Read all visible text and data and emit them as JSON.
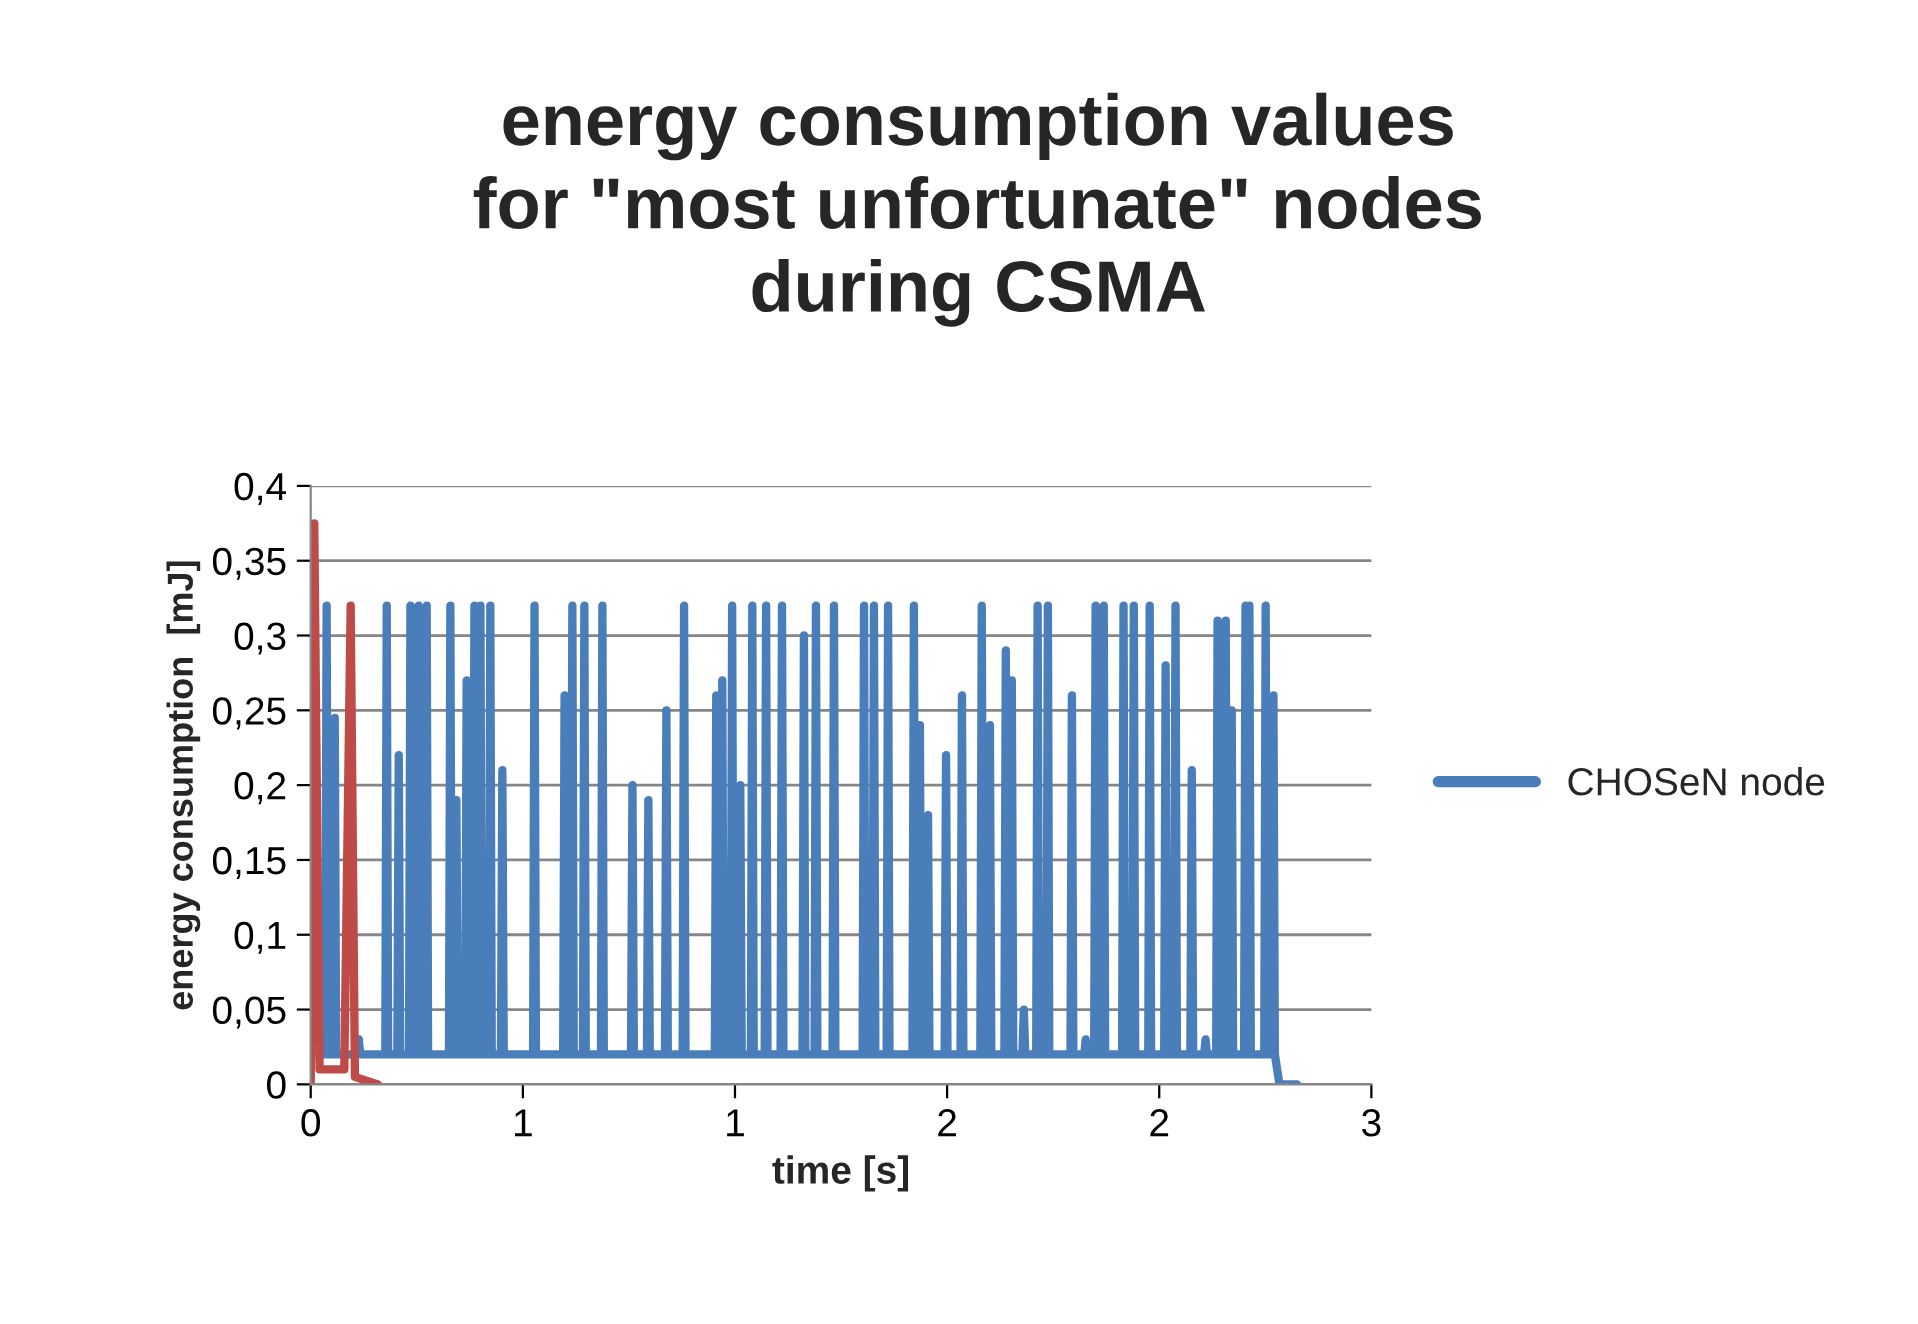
{
  "chart_data": {
    "type": "line",
    "title": "energy consumption values\nfor \"most unfortunate\" nodes\nduring CSMA",
    "xlabel": "time [s]",
    "ylabel": "energy consumption  [mJ]",
    "xlim": [
      0,
      3
    ],
    "xticks": [
      0,
      {
        "value": 0.6,
        "label": "1"
      },
      {
        "value": 1.2,
        "label": "1"
      },
      {
        "value": 1.8,
        "label": "2"
      },
      {
        "value": 2.4,
        "label": "2"
      },
      3
    ],
    "ylim": [
      0,
      0.4
    ],
    "yticks": [
      0,
      {
        "value": 0.05,
        "label": "0,05"
      },
      {
        "value": 0.1,
        "label": "0,1"
      },
      {
        "value": 0.15,
        "label": "0,15"
      },
      {
        "value": 0.2,
        "label": "0,2"
      },
      {
        "value": 0.25,
        "label": "0,25"
      },
      {
        "value": 0.3,
        "label": "0,3"
      },
      {
        "value": 0.35,
        "label": "0,35"
      },
      {
        "value": 0.4,
        "label": "0,4"
      }
    ],
    "grid": "y",
    "legend": "right",
    "marker": "none",
    "line_style": "solid",
    "series": [
      {
        "name": "CHOSeN node",
        "color": "#4a7ebb",
        "x": [
          0.02,
          0.041,
          0.045,
          0.049,
          0.064,
          0.068,
          0.072,
          0.132,
          0.136,
          0.14,
          0.211,
          0.215,
          0.219,
          0.245,
          0.249,
          0.253,
          0.278,
          0.282,
          0.286,
          0.301,
          0.305,
          0.309,
          0.324,
          0.328,
          0.332,
          0.391,
          0.395,
          0.399,
          0.408,
          0.412,
          0.416,
          0.437,
          0.441,
          0.445,
          0.459,
          0.463,
          0.467,
          0.476,
          0.48,
          0.484,
          0.504,
          0.508,
          0.512,
          0.538,
          0.542,
          0.546,
          0.629,
          0.633,
          0.637,
          0.714,
          0.718,
          0.722,
          0.736,
          0.74,
          0.744,
          0.77,
          0.774,
          0.778,
          0.821,
          0.825,
          0.829,
          0.906,
          0.91,
          0.914,
          0.951,
          0.955,
          0.959,
          1.002,
          1.006,
          1.01,
          1.052,
          1.056,
          1.06,
          1.143,
          1.147,
          1.151,
          1.16,
          1.164,
          1.168,
          1.188,
          1.192,
          1.196,
          1.211,
          1.215,
          1.219,
          1.245,
          1.249,
          1.253,
          1.284,
          1.288,
          1.292,
          1.329,
          1.333,
          1.337,
          1.391,
          1.395,
          1.399,
          1.425,
          1.429,
          1.433,
          1.476,
          1.48,
          1.484,
          1.561,
          1.565,
          1.569,
          1.589,
          1.593,
          1.597,
          1.629,
          1.633,
          1.637,
          1.702,
          1.706,
          1.71,
          1.719,
          1.723,
          1.727,
          1.742,
          1.746,
          1.75,
          1.793,
          1.797,
          1.801,
          1.838,
          1.842,
          1.846,
          1.894,
          1.898,
          1.902,
          1.917,
          1.921,
          1.925,
          1.962,
          1.966,
          1.97,
          1.979,
          1.983,
          1.987,
          2.013,
          2.017,
          2.021,
          2.052,
          2.056,
          2.06,
          2.081,
          2.085,
          2.089,
          2.149,
          2.153,
          2.157,
          2.188,
          2.192,
          2.196,
          2.216,
          2.22,
          2.224,
          2.239,
          2.243,
          2.247,
          2.295,
          2.299,
          2.303,
          2.324,
          2.328,
          2.332,
          2.369,
          2.373,
          2.377,
          2.414,
          2.418,
          2.422,
          2.442,
          2.446,
          2.45,
          2.488,
          2.492,
          2.496,
          2.527,
          2.531,
          2.535,
          2.561,
          2.565,
          2.569,
          2.584,
          2.588,
          2.592,
          2.601,
          2.605,
          2.609,
          2.64,
          2.644,
          2.648,
          2.651,
          2.655,
          2.659,
          2.697,
          2.701,
          2.705,
          2.719,
          2.723,
          2.727,
          2.74,
          2.79
        ],
        "values": [
          0.02,
          0.02,
          0.32,
          0.02,
          0.02,
          0.245,
          0.02,
          0.02,
          0.03,
          0.02,
          0.02,
          0.32,
          0.02,
          0.02,
          0.22,
          0.02,
          0.02,
          0.32,
          0.02,
          0.02,
          0.32,
          0.02,
          0.02,
          0.32,
          0.02,
          0.02,
          0.32,
          0.02,
          0.02,
          0.19,
          0.02,
          0.02,
          0.27,
          0.02,
          0.02,
          0.32,
          0.02,
          0.02,
          0.32,
          0.02,
          0.02,
          0.32,
          0.02,
          0.02,
          0.21,
          0.02,
          0.02,
          0.32,
          0.02,
          0.02,
          0.26,
          0.02,
          0.02,
          0.32,
          0.02,
          0.02,
          0.32,
          0.02,
          0.02,
          0.32,
          0.02,
          0.02,
          0.2,
          0.02,
          0.02,
          0.19,
          0.02,
          0.02,
          0.25,
          0.02,
          0.02,
          0.32,
          0.02,
          0.02,
          0.26,
          0.02,
          0.02,
          0.27,
          0.02,
          0.02,
          0.32,
          0.02,
          0.02,
          0.2,
          0.02,
          0.02,
          0.32,
          0.02,
          0.02,
          0.32,
          0.02,
          0.02,
          0.32,
          0.02,
          0.02,
          0.3,
          0.02,
          0.02,
          0.32,
          0.02,
          0.02,
          0.32,
          0.02,
          0.02,
          0.32,
          0.02,
          0.02,
          0.32,
          0.02,
          0.02,
          0.32,
          0.02,
          0.02,
          0.32,
          0.02,
          0.02,
          0.24,
          0.02,
          0.02,
          0.18,
          0.02,
          0.02,
          0.22,
          0.02,
          0.02,
          0.26,
          0.02,
          0.02,
          0.32,
          0.02,
          0.02,
          0.24,
          0.02,
          0.02,
          0.29,
          0.02,
          0.02,
          0.27,
          0.02,
          0.02,
          0.05,
          0.02,
          0.02,
          0.32,
          0.02,
          0.02,
          0.32,
          0.02,
          0.02,
          0.26,
          0.02,
          0.02,
          0.03,
          0.02,
          0.02,
          0.32,
          0.02,
          0.02,
          0.32,
          0.02,
          0.02,
          0.32,
          0.02,
          0.02,
          0.32,
          0.02,
          0.02,
          0.32,
          0.02,
          0.02,
          0.28,
          0.02,
          0.02,
          0.32,
          0.02,
          0.02,
          0.21,
          0.02,
          0.02,
          0.03,
          0.02,
          0.02,
          0.31,
          0.02,
          0.02,
          0.31,
          0.02,
          0.02,
          0.25,
          0.02,
          0.02,
          0.32,
          0.02,
          0.02,
          0.32,
          0.02,
          0.02,
          0.32,
          0.02,
          0.02,
          0.26,
          0.02,
          0.0,
          0.0
        ]
      },
      {
        "color": "#be4b48",
        "x": [
          0.0,
          0.01,
          0.025,
          0.095,
          0.113,
          0.125,
          0.19
        ],
        "values": [
          0.0,
          0.375,
          0.01,
          0.01,
          0.32,
          0.005,
          0.0
        ]
      }
    ]
  }
}
